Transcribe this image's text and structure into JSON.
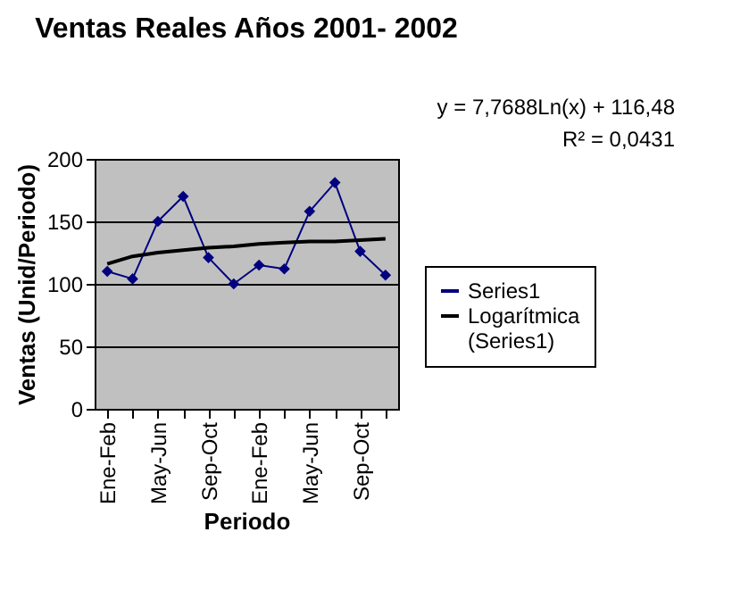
{
  "chart_data": {
    "type": "line",
    "title": "Ventas Reales Años 2001- 2002",
    "xlabel": "Periodo",
    "ylabel": "Ventas (Unid/Periodo)",
    "categories": [
      "Ene-Feb",
      null,
      "May-Jun",
      null,
      "Sep-Oct",
      null,
      "Ene-Feb",
      null,
      "May-Jun",
      null,
      "Sep-Oct",
      null
    ],
    "series": [
      {
        "name": "Series1",
        "color": "#000080",
        "marker": "diamond",
        "line_style": "solid",
        "values": [
          110,
          104,
          150,
          170,
          121,
          100,
          115,
          112,
          158,
          181,
          126,
          107
        ]
      },
      {
        "name": "Logarítmica (Series1)",
        "color": "#000000",
        "marker": "none",
        "line_style": "solid",
        "values": [
          116,
          122,
          125,
          127,
          129,
          130,
          132,
          133,
          134,
          134,
          135,
          136
        ]
      }
    ],
    "ylim": [
      0,
      200
    ],
    "yticks": [
      0,
      50,
      100,
      150,
      200
    ],
    "grid": "y",
    "legend": "right",
    "annotations": [
      "y = 7,7688Ln(x) + 116,48",
      "R² = 0,0431"
    ]
  }
}
